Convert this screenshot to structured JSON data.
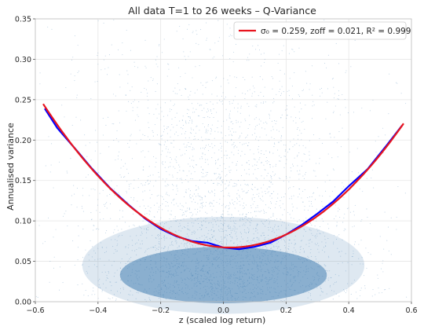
{
  "chart_data": {
    "type": "scatter",
    "title": "All data T=1 to 26 weeks – Q-Variance",
    "xlabel": "z (scaled log return)",
    "ylabel": "Annualised variance",
    "xlim": [
      -0.6,
      0.6
    ],
    "ylim": [
      0.0,
      0.35
    ],
    "x_ticks": [
      "−0.6",
      "−0.4",
      "−0.2",
      "0.0",
      "0.2",
      "0.4",
      "0.6"
    ],
    "y_ticks": [
      "0.00",
      "0.05",
      "0.10",
      "0.15",
      "0.20",
      "0.25",
      "0.30",
      "0.35"
    ],
    "grid": true,
    "legend_position": "top-right",
    "scatter_color": "#4682b4",
    "series": [
      {
        "kind": "binned-mean",
        "color": "#0000ff",
        "x": [
          -0.57,
          -0.53,
          -0.47,
          -0.42,
          -0.36,
          -0.3,
          -0.25,
          -0.2,
          -0.15,
          -0.1,
          -0.05,
          0.0,
          0.05,
          0.1,
          0.15,
          0.2,
          0.25,
          0.3,
          0.35,
          0.4,
          0.46,
          0.52,
          0.57
        ],
        "y": [
          0.239,
          0.215,
          0.188,
          0.165,
          0.14,
          0.119,
          0.103,
          0.09,
          0.081,
          0.075,
          0.073,
          0.067,
          0.065,
          0.068,
          0.073,
          0.083,
          0.095,
          0.109,
          0.124,
          0.143,
          0.164,
          0.193,
          0.218
        ]
      },
      {
        "kind": "fit",
        "name": "σ₀ = 0.259, zoff = 0.021, R² = 0.999",
        "color": "#e8141e",
        "sigma0": 0.259,
        "zoff": 0.021,
        "x_range": [
          -0.575,
          0.575
        ]
      }
    ]
  }
}
